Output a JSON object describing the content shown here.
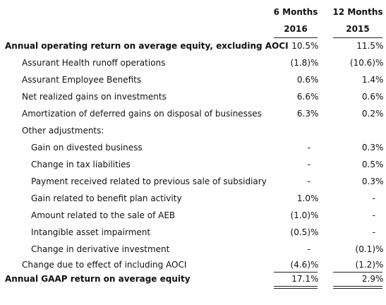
{
  "header": {
    "col1_top": "6 Months",
    "col1_year": "2016",
    "col2_top": "12 Months",
    "col2_year": "2015"
  },
  "rows": [
    {
      "label": "Annual operating return on average equity, excluding AOCI",
      "c1": "10.5",
      "c1s": "%",
      "c2": "11.5",
      "c2s": "%"
    },
    {
      "label": "Assurant Health runoff operations",
      "c1": "(1.8)",
      "c1s": "%",
      "c2": "(10.6)",
      "c2s": "%"
    },
    {
      "label": "Assurant Employee Benefits",
      "c1": "0.6",
      "c1s": "%",
      "c2": "1.4",
      "c2s": "%"
    },
    {
      "label": "Net realized gains on investments",
      "c1": "6.6",
      "c1s": "%",
      "c2": "0.6",
      "c2s": "%"
    },
    {
      "label": "Amortization of deferred gains on disposal of businesses",
      "c1": "6.3",
      "c1s": "%",
      "c2": "0.2",
      "c2s": "%"
    },
    {
      "label": "Other adjustments:",
      "c1": "",
      "c1s": "",
      "c2": "",
      "c2s": ""
    },
    {
      "label": "Gain on divested business",
      "c1": "-",
      "c1s": "",
      "c2": "0.3",
      "c2s": "%"
    },
    {
      "label": "Change in tax liabilities",
      "c1": "-",
      "c1s": "",
      "c2": "0.5",
      "c2s": "%"
    },
    {
      "label": "Payment received related to previous sale of subsidiary",
      "c1": "-",
      "c1s": "",
      "c2": "0.3",
      "c2s": "%"
    },
    {
      "label": "Gain related to benefit plan activity",
      "c1": "1.0",
      "c1s": "%",
      "c2": "-",
      "c2s": ""
    },
    {
      "label": "Amount related to the sale of AEB",
      "c1": "(1.0)",
      "c1s": "%",
      "c2": "-",
      "c2s": ""
    },
    {
      "label": "Intangible asset impairment",
      "c1": "(0.5)",
      "c1s": "%",
      "c2": "-",
      "c2s": ""
    },
    {
      "label": "Change in derivative investment",
      "c1": "-",
      "c1s": "",
      "c2": "(0.1)",
      "c2s": "%"
    },
    {
      "label": "Change due to effect of including AOCI",
      "c1": "(4.6)",
      "c1s": "%",
      "c2": "(1.2)",
      "c2s": "%"
    },
    {
      "label": "Annual GAAP return on average equity",
      "c1": "17.1",
      "c1s": "%",
      "c2": "2.9",
      "c2s": "%"
    }
  ]
}
